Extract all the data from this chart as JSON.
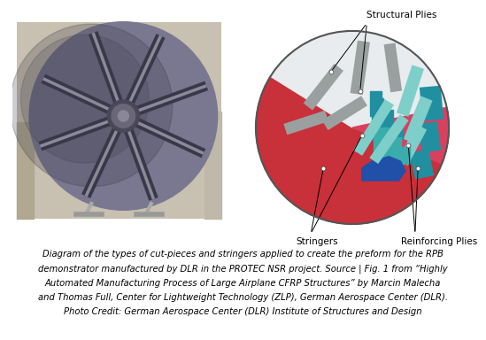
{
  "bg_color": "#ffffff",
  "caption_lines": [
    "Diagram of the types of cut-pieces and stringers applied to create the preform for the RPB",
    "demonstrator manufactured by DLR in the PROTEC NSR project. Source | Fig. 1 from “Highly",
    "Automated Manufacturing Process of Large Airplane CFRP Structures” by Marcin Malecha",
    "and Thomas Full, Center for Lightweight Technology (ZLP), German Aerospace Center (DLR).",
    "Photo Credit: German Aerospace Center (DLR) Institute of Structures and Design"
  ],
  "caption_fontsize": 7.2,
  "label_fontsize": 7.5,
  "color_red": "#c8303a",
  "color_pink_red": "#d94060",
  "color_teal_light": "#7ececa",
  "color_teal_med": "#3aacac",
  "color_teal_dark": "#2090a0",
  "color_blue_dark": "#2050a8",
  "color_gray": "#9aa0a0",
  "color_white_bg": "#e8ecee",
  "structural_plies_label": "Structural Plies",
  "stringers_label": "Stringers",
  "reinforcing_plies_label": "Reinforcing Plies",
  "photo_bg": "#7a7890",
  "photo_dark": "#4a485a",
  "photo_stringer": "#888a9a",
  "photo_center": "#5a5868"
}
